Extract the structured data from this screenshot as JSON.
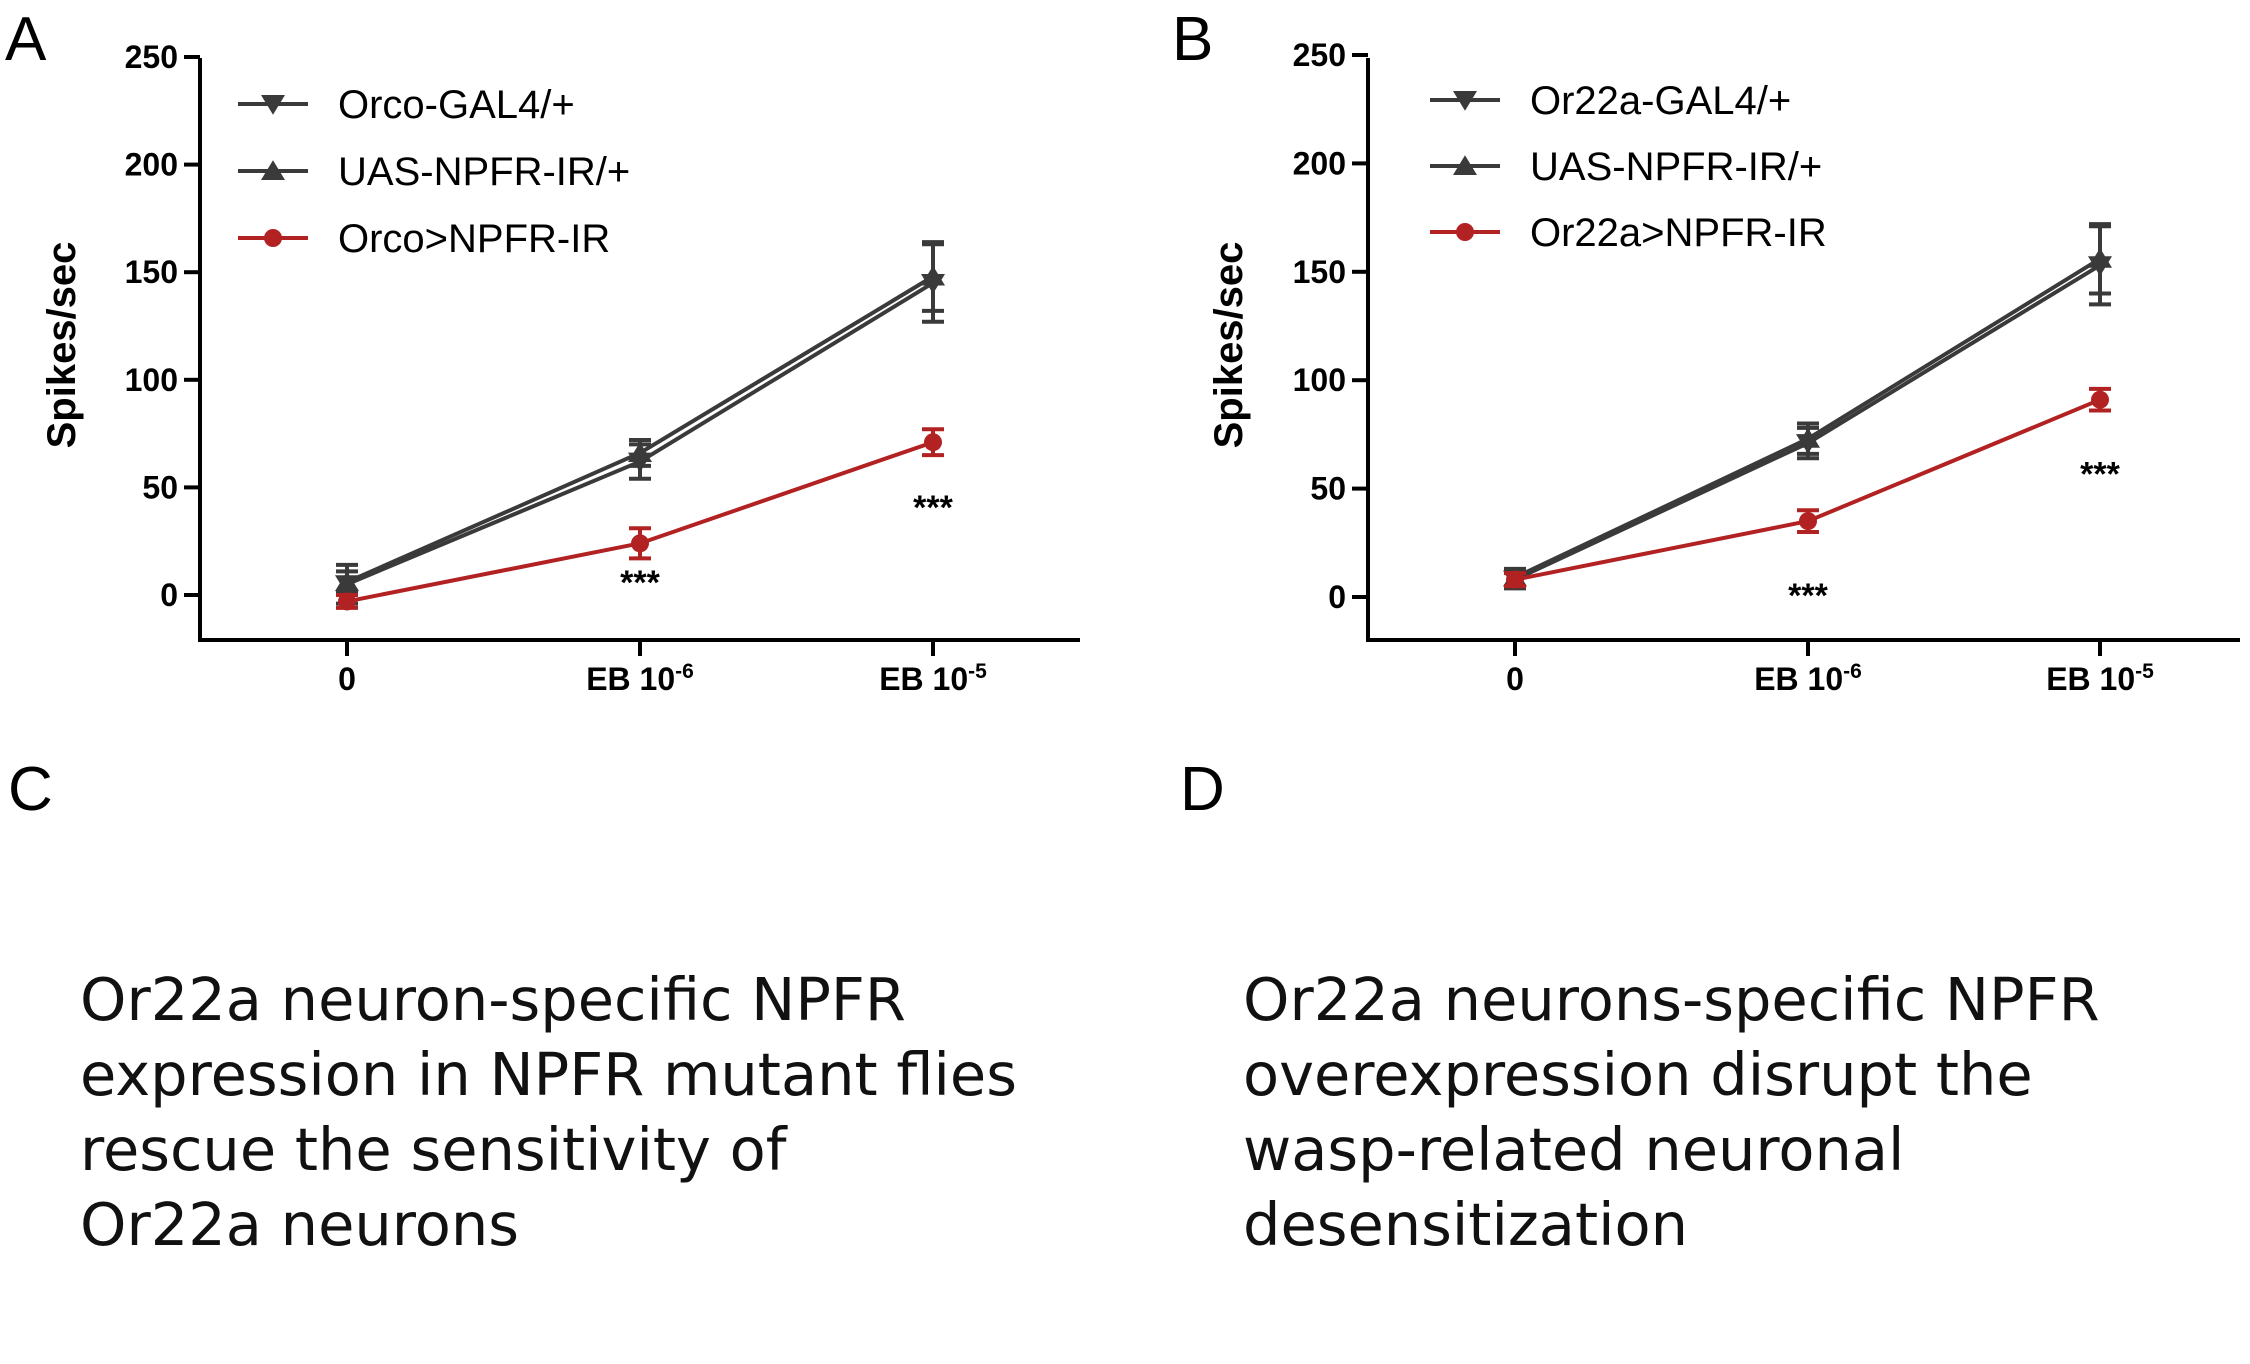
{
  "panels": [
    {
      "letter": "A",
      "description_lines": []
    },
    {
      "letter": "B",
      "description_lines": []
    },
    {
      "letter": "C",
      "description_lines": [
        "Or22a neuron-specific NPFR",
        "expression in NPFR mutant flies",
        "rescue the sensitivity of",
        "Or22a neurons"
      ]
    },
    {
      "letter": "D",
      "description_lines": [
        "Or22a neurons-specific NPFR",
        "overexpression disrupt the",
        "wasp-related neuronal",
        "desensitization"
      ]
    }
  ],
  "colors": {
    "control": "#3a3a3a",
    "experimental": "#b22222"
  },
  "chart_data": [
    {
      "type": "line",
      "panel": "A",
      "ylabel": "Spikes/sec",
      "xlabel": "",
      "ylim": [
        0,
        250
      ],
      "yticks": [
        0,
        50,
        100,
        150,
        200,
        250
      ],
      "categories": [
        {
          "base": "0",
          "exp": ""
        },
        {
          "base": "EB 10",
          "exp": "-6"
        },
        {
          "base": "EB 10",
          "exp": "-5"
        }
      ],
      "legend_position": "top-left",
      "series": [
        {
          "name": "Orco-GAL4/+",
          "marker": "triangle-down",
          "color": "#3a3a3a",
          "values": [
            5,
            62,
            145
          ],
          "errors": [
            9,
            8,
            18
          ]
        },
        {
          "name": "UAS-NPFR-IR/+",
          "marker": "triangle-up",
          "color": "#3a3a3a",
          "values": [
            6,
            66,
            148
          ],
          "errors": [
            5,
            6,
            16
          ]
        },
        {
          "name": "Orco>NPFR-IR",
          "marker": "circle",
          "color": "#b22222",
          "values": [
            -3,
            24,
            71
          ],
          "errors": [
            3,
            7,
            6
          ]
        }
      ],
      "annotations": [
        {
          "text": "***",
          "category_index": 1,
          "y": 5
        },
        {
          "text": "***",
          "category_index": 2,
          "y": 40
        }
      ]
    },
    {
      "type": "line",
      "panel": "B",
      "ylabel": "Spikes/sec",
      "xlabel": "",
      "ylim": [
        0,
        250
      ],
      "yticks": [
        0,
        50,
        100,
        150,
        200,
        250
      ],
      "categories": [
        {
          "base": "0",
          "exp": ""
        },
        {
          "base": "EB 10",
          "exp": "-6"
        },
        {
          "base": "EB 10",
          "exp": "-5"
        }
      ],
      "legend_position": "top-left",
      "series": [
        {
          "name": "Or22a-GAL4/+",
          "marker": "triangle-down",
          "color": "#3a3a3a",
          "values": [
            8,
            71,
            153
          ],
          "errors": [
            4,
            7,
            18
          ]
        },
        {
          "name": "UAS-NPFR-IR/+",
          "marker": "triangle-up",
          "color": "#3a3a3a",
          "values": [
            9,
            73,
            156
          ],
          "errors": [
            4,
            7,
            16
          ]
        },
        {
          "name": "Or22a>NPFR-IR",
          "marker": "circle",
          "color": "#b22222",
          "values": [
            8,
            35,
            91
          ],
          "errors": [
            3,
            5,
            5
          ]
        }
      ],
      "annotations": [
        {
          "text": "***",
          "category_index": 1,
          "y": 0
        },
        {
          "text": "***",
          "category_index": 2,
          "y": 56
        }
      ]
    }
  ]
}
